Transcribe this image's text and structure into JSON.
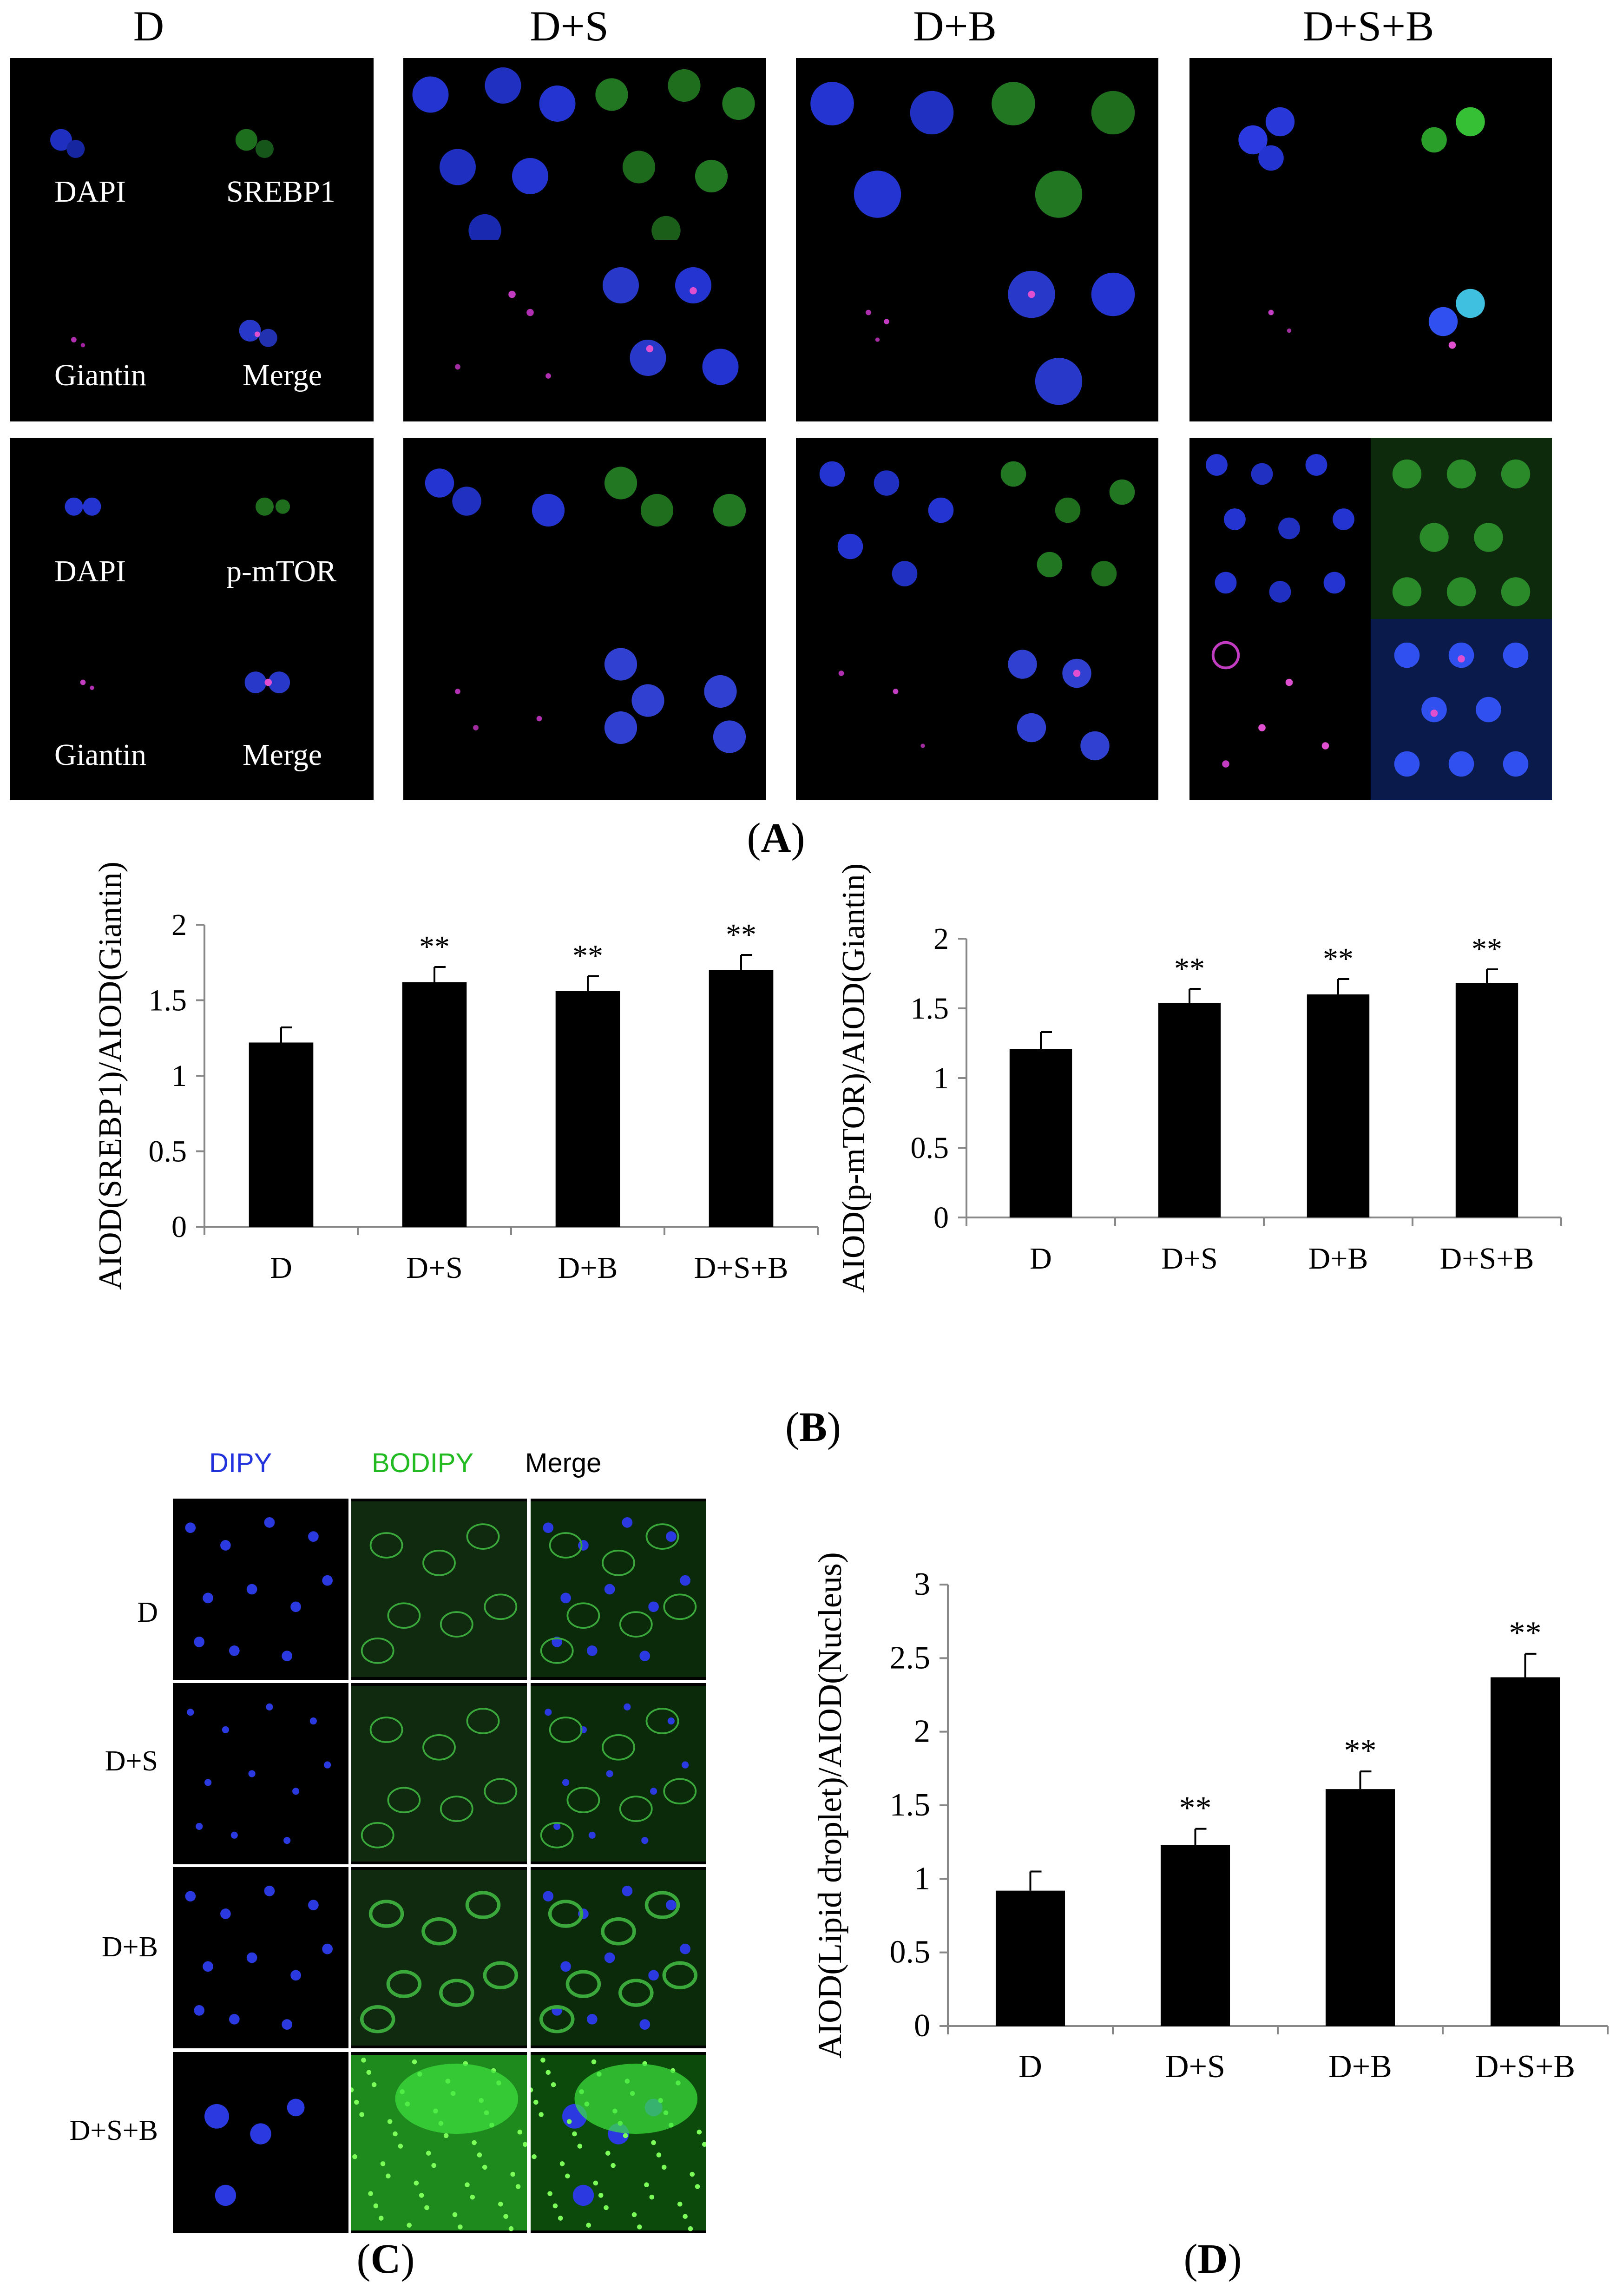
{
  "panel_a": {
    "columns": [
      "D",
      "D+S",
      "D+B",
      "D+S+B"
    ],
    "row1_labels": [
      "DAPI",
      "SREBP1",
      "Giantin",
      "Merge"
    ],
    "row2_labels": [
      "DAPI",
      "p-mTOR",
      "Giantin",
      "Merge"
    ],
    "caption": "A"
  },
  "panel_b": {
    "caption": "B"
  },
  "panel_c": {
    "headers": [
      "DIPY",
      "BODIPY",
      "Merge"
    ],
    "header_colors": [
      "#2233dd",
      "#22bb22",
      "#000000"
    ],
    "rows": [
      "D",
      "D+S",
      "D+B",
      "D+S+B"
    ],
    "caption": "C"
  },
  "panel_d": {
    "caption": "D"
  },
  "chart_data": [
    {
      "type": "bar",
      "categories": [
        "D",
        "D+S",
        "D+B",
        "D+S+B"
      ],
      "values": [
        1.22,
        1.62,
        1.56,
        1.7
      ],
      "errors": [
        0.1,
        0.1,
        0.1,
        0.1
      ],
      "annotations": [
        "",
        "**",
        "**",
        "**"
      ],
      "ylabel": "AIOD(SREBP1)/AIOD(Giantin)",
      "yticks": [
        0,
        0.5,
        1,
        1.5,
        2
      ],
      "ylim": [
        0,
        2
      ]
    },
    {
      "type": "bar",
      "categories": [
        "D",
        "D+S",
        "D+B",
        "D+S+B"
      ],
      "values": [
        1.21,
        1.54,
        1.6,
        1.68
      ],
      "errors": [
        0.12,
        0.1,
        0.11,
        0.1
      ],
      "annotations": [
        "",
        "**",
        "**",
        "**"
      ],
      "ylabel": "AIOD(p-mTOR)/AIOD(Giantin)",
      "yticks": [
        0,
        0.5,
        1,
        1.5,
        2
      ],
      "ylim": [
        0,
        2
      ]
    },
    {
      "type": "bar",
      "categories": [
        "D",
        "D+S",
        "D+B",
        "D+S+B"
      ],
      "values": [
        0.92,
        1.23,
        1.61,
        2.37
      ],
      "errors": [
        0.13,
        0.11,
        0.12,
        0.16
      ],
      "annotations": [
        "",
        "**",
        "**",
        "**"
      ],
      "ylabel": "AIOD(Lipid droplet)/AIOD(Nucleus)",
      "yticks": [
        0,
        0.5,
        1,
        1.5,
        2,
        2.5,
        3
      ],
      "ylim": [
        0,
        3
      ]
    }
  ]
}
